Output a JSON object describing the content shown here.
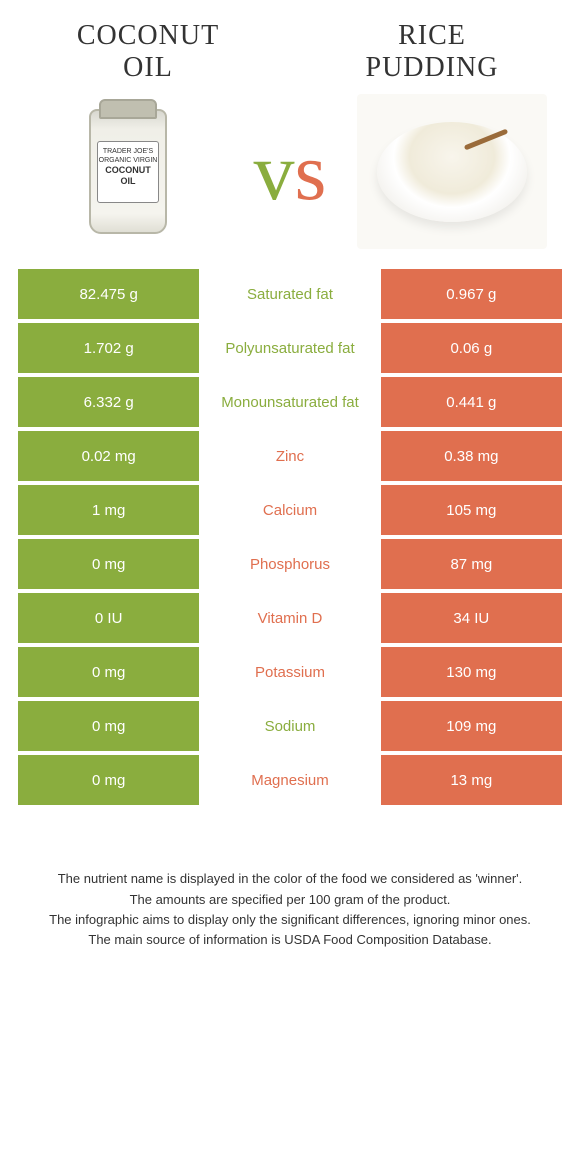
{
  "header": {
    "left_title_line1": "Coconut",
    "left_title_line2": "oil",
    "right_title_line1": "Rice",
    "right_title_line2": "pudding",
    "vs_v": "v",
    "vs_s": "s",
    "jar_label_top": "TRADER JOE'S",
    "jar_label_mid": "ORGANIC VIRGIN",
    "jar_label_main": "COCONUT OIL"
  },
  "colors": {
    "left": "#8aad3e",
    "right": "#e06f4f",
    "background": "#ffffff"
  },
  "table": {
    "type": "comparison-table",
    "columns": [
      "left_value",
      "nutrient",
      "right_value"
    ],
    "rows": [
      {
        "left": "82.475 g",
        "label": "Saturated fat",
        "right": "0.967 g",
        "winner": "left"
      },
      {
        "left": "1.702 g",
        "label": "Polyunsaturated fat",
        "right": "0.06 g",
        "winner": "left"
      },
      {
        "left": "6.332 g",
        "label": "Monounsaturated fat",
        "right": "0.441 g",
        "winner": "left"
      },
      {
        "left": "0.02 mg",
        "label": "Zinc",
        "right": "0.38 mg",
        "winner": "right"
      },
      {
        "left": "1 mg",
        "label": "Calcium",
        "right": "105 mg",
        "winner": "right"
      },
      {
        "left": "0 mg",
        "label": "Phosphorus",
        "right": "87 mg",
        "winner": "right"
      },
      {
        "left": "0 IU",
        "label": "Vitamin D",
        "right": "34 IU",
        "winner": "right"
      },
      {
        "left": "0 mg",
        "label": "Potassium",
        "right": "130 mg",
        "winner": "right"
      },
      {
        "left": "0 mg",
        "label": "Sodium",
        "right": "109 mg",
        "winner": "left"
      },
      {
        "left": "0 mg",
        "label": "Magnesium",
        "right": "13 mg",
        "winner": "right"
      }
    ]
  },
  "footer": {
    "line1": "The nutrient name is displayed in the color of the food we considered as 'winner'.",
    "line2": "The amounts are specified per 100 gram of the product.",
    "line3": "The infographic aims to display only the significant differences, ignoring minor ones.",
    "line4": "The main source of information is USDA Food Composition Database."
  }
}
